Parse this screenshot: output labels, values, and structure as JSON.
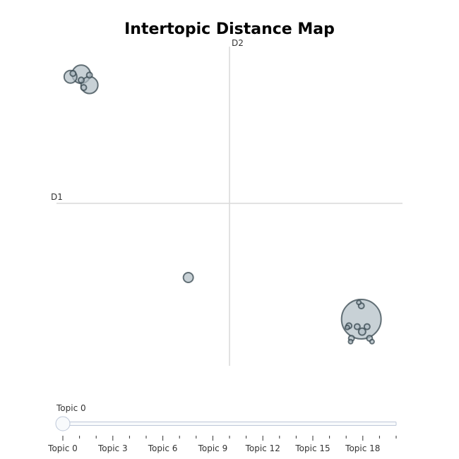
{
  "chart_data": {
    "type": "scatter",
    "title": "Intertopic Distance Map",
    "xlabel": "D1",
    "ylabel": "D2",
    "xlim": [
      -2.1,
      2.1
    ],
    "ylim": [
      -1.95,
      1.95
    ],
    "grid": false,
    "colors": {
      "fill": "#b0bec5",
      "stroke": "#37474f",
      "axis": "#d9d9d9",
      "slider_track": "#f8fafc",
      "slider_border": "#bec8d9"
    },
    "points": [
      {
        "topic": 0,
        "x": 1.6,
        "y": -1.39,
        "size": 28
      },
      {
        "topic": 1,
        "x": -1.8,
        "y": 1.55,
        "size": 13
      },
      {
        "topic": 2,
        "x": -1.7,
        "y": 1.42,
        "size": 12
      },
      {
        "topic": 3,
        "x": -1.93,
        "y": 1.52,
        "size": 9
      },
      {
        "topic": 4,
        "x": -0.5,
        "y": -0.89,
        "size": 7
      },
      {
        "topic": 5,
        "x": 1.61,
        "y": -1.54,
        "size": 5
      },
      {
        "topic": 6,
        "x": 1.48,
        "y": -1.62,
        "size": 4
      },
      {
        "topic": 7,
        "x": 1.55,
        "y": -1.48,
        "size": 4
      },
      {
        "topic": 8,
        "x": 1.67,
        "y": -1.48,
        "size": 4
      },
      {
        "topic": 9,
        "x": 1.45,
        "y": -1.47,
        "size": 4
      },
      {
        "topic": 10,
        "x": 1.7,
        "y": -1.62,
        "size": 4
      },
      {
        "topic": 11,
        "x": -1.8,
        "y": 1.48,
        "size": 4
      },
      {
        "topic": 12,
        "x": -1.9,
        "y": 1.56,
        "size": 4
      },
      {
        "topic": 13,
        "x": -1.77,
        "y": 1.39,
        "size": 4
      },
      {
        "topic": 14,
        "x": -1.7,
        "y": 1.54,
        "size": 4
      },
      {
        "topic": 15,
        "x": 1.57,
        "y": -1.19,
        "size": 3
      },
      {
        "topic": 16,
        "x": 1.6,
        "y": -1.23,
        "size": 4
      },
      {
        "topic": 17,
        "x": 1.43,
        "y": -1.49,
        "size": 3
      },
      {
        "topic": 18,
        "x": 1.47,
        "y": -1.66,
        "size": 3
      },
      {
        "topic": 19,
        "x": 1.73,
        "y": -1.66,
        "size": 3
      }
    ]
  },
  "slider": {
    "current_label": "Topic 0",
    "value": 0,
    "min": 0,
    "max": 20,
    "ticks": [
      "Topic 0",
      "",
      "",
      "Topic 3",
      "",
      "",
      "Topic 6",
      "",
      "",
      "Topic 9",
      "",
      "",
      "Topic 12",
      "",
      "",
      "Topic 15",
      "",
      "",
      "Topic 18",
      "",
      ""
    ]
  }
}
